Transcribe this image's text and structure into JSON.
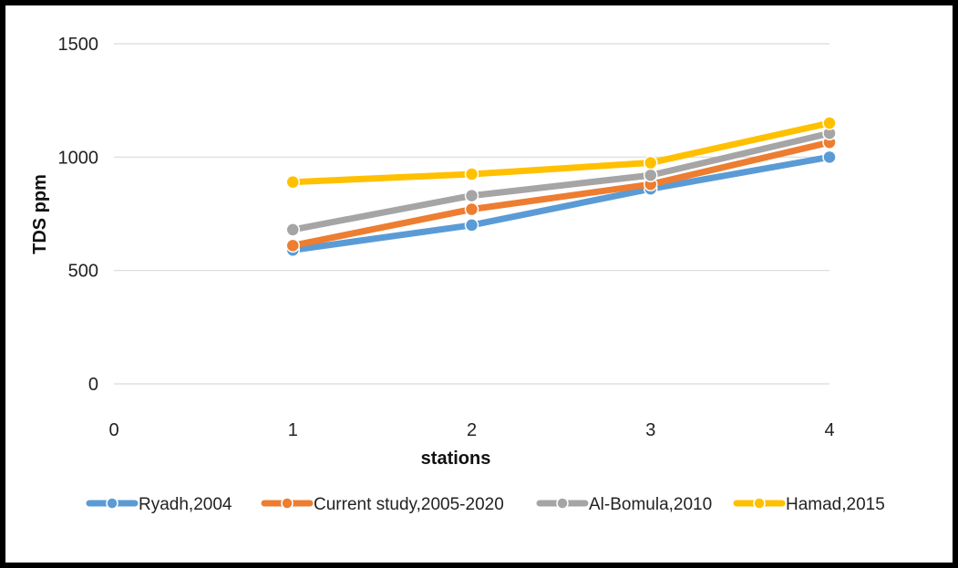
{
  "chart_data": {
    "type": "line",
    "xlabel": "stations",
    "ylabel": "TDS ppm",
    "x_ticks": [
      "0",
      "1",
      "2",
      "3",
      "4"
    ],
    "y_ticks": [
      "0",
      "500",
      "1000",
      "1500"
    ],
    "xlim": [
      0,
      4
    ],
    "ylim": [
      0,
      1500
    ],
    "grid": "horizontal",
    "legend_position": "bottom",
    "x": [
      1,
      2,
      3,
      4
    ],
    "series": [
      {
        "name": "Ryadh,2004",
        "color": "#5B9BD5",
        "values": [
          590,
          700,
          860,
          1000
        ]
      },
      {
        "name": "Current study,2005-2020",
        "color": "#ED7D31",
        "values": [
          610,
          770,
          880,
          1065
        ]
      },
      {
        "name": "Al-Bomula,2010",
        "color": "#A5A5A5",
        "values": [
          680,
          830,
          920,
          1105
        ]
      },
      {
        "name": "Hamad,2015",
        "color": "#FFC000",
        "values": [
          890,
          925,
          975,
          1150
        ]
      }
    ]
  }
}
